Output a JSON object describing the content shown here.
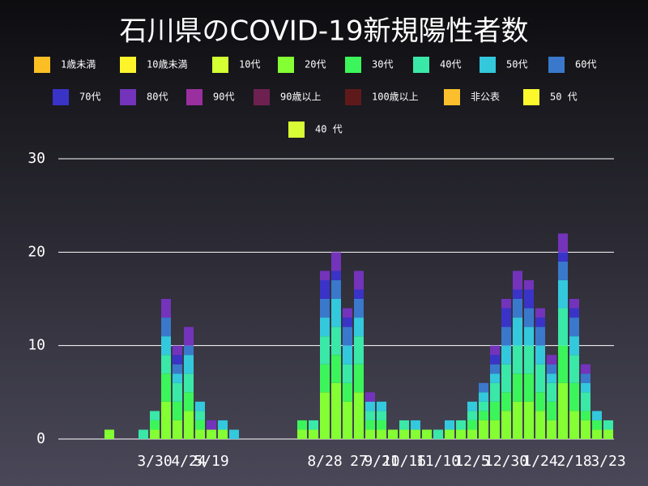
{
  "chart_data": {
    "type": "stacked_bar",
    "title": "石川県のCOVID-19新規陽性者数",
    "categories": [
      null,
      null,
      null,
      null,
      null,
      null,
      null,
      null,
      "3/30",
      null,
      null,
      "4/24",
      null,
      "5/19",
      null,
      null,
      null,
      null,
      null,
      null,
      null,
      null,
      null,
      "8/28",
      null,
      null,
      "27",
      null,
      "9/21",
      null,
      "10/16",
      null,
      null,
      "11/10",
      null,
      null,
      "12/5",
      null,
      null,
      "12/30",
      null,
      null,
      "1/24",
      null,
      null,
      "2/18",
      null,
      null,
      "3/23"
    ],
    "series": [
      {
        "name": "1歳未満",
        "color": "#fbbf24",
        "values": [
          0,
          0,
          0,
          0,
          0,
          0,
          0,
          0,
          0,
          0,
          0,
          0,
          0,
          0,
          0,
          0,
          0,
          0,
          0,
          0,
          0,
          0,
          0,
          0,
          0,
          0,
          0,
          0,
          0,
          0,
          0,
          0,
          0,
          0,
          0,
          0,
          0,
          0,
          0,
          0,
          0,
          0,
          0,
          0,
          0,
          0,
          0,
          0,
          0
        ]
      },
      {
        "name": "10歳未満",
        "color": "#fdf52a",
        "values": [
          0,
          0,
          0,
          0,
          0,
          0,
          0,
          0,
          0,
          0,
          0,
          0,
          0,
          0,
          0,
          0,
          0,
          0,
          0,
          0,
          0,
          0,
          0,
          0,
          0,
          0,
          0,
          0,
          0,
          0,
          0,
          0,
          0,
          0,
          0,
          0,
          0,
          0,
          0,
          0,
          0,
          0,
          0,
          0,
          0,
          0,
          0,
          0,
          0
        ]
      },
      {
        "name": "10代",
        "color": "#d4ff33",
        "values": [
          0,
          0,
          0,
          0,
          0,
          0,
          0,
          0,
          0,
          0,
          0,
          0,
          0,
          0,
          0,
          0,
          0,
          0,
          0,
          0,
          0,
          0,
          0,
          0,
          0,
          0,
          0,
          0,
          0,
          0,
          0,
          0,
          0,
          0,
          0,
          0,
          0,
          0,
          0,
          0,
          0,
          0,
          0,
          0,
          0,
          0,
          0,
          0,
          0
        ]
      },
      {
        "name": "20代",
        "color": "#84ff33",
        "values": [
          0,
          0,
          0,
          0,
          1,
          0,
          0,
          0,
          1,
          4,
          2,
          3,
          1,
          1,
          1,
          0,
          0,
          0,
          0,
          0,
          0,
          1,
          1,
          5,
          6,
          4,
          5,
          1,
          1,
          1,
          1,
          1,
          1,
          0,
          1,
          1,
          1,
          2,
          2,
          3,
          4,
          4,
          3,
          2,
          6,
          3,
          2,
          1,
          1
        ]
      },
      {
        "name": "30代",
        "color": "#3cf55a",
        "values": [
          0,
          0,
          0,
          0,
          0,
          0,
          0,
          0,
          1,
          3,
          2,
          2,
          1,
          0,
          0,
          0,
          0,
          0,
          0,
          0,
          0,
          1,
          0,
          3,
          3,
          2,
          3,
          1,
          1,
          0,
          0,
          0,
          0,
          0,
          0,
          0,
          1,
          1,
          2,
          2,
          3,
          3,
          2,
          2,
          4,
          3,
          1,
          1,
          0
        ]
      },
      {
        "name": "40代",
        "color": "#3ae8a8",
        "values": [
          0,
          0,
          0,
          0,
          0,
          0,
          0,
          1,
          1,
          2,
          2,
          2,
          1,
          0,
          0,
          0,
          0,
          0,
          0,
          0,
          0,
          0,
          1,
          3,
          3,
          2,
          3,
          1,
          1,
          0,
          1,
          0,
          0,
          1,
          0,
          1,
          1,
          1,
          2,
          3,
          3,
          3,
          3,
          2,
          4,
          3,
          2,
          0,
          1
        ]
      },
      {
        "name": "50代",
        "color": "#33c8dc",
        "values": [
          0,
          0,
          0,
          0,
          0,
          0,
          0,
          0,
          0,
          2,
          1,
          2,
          1,
          0,
          1,
          1,
          0,
          0,
          0,
          0,
          0,
          0,
          0,
          2,
          3,
          2,
          2,
          1,
          1,
          0,
          0,
          1,
          0,
          0,
          1,
          0,
          1,
          1,
          1,
          2,
          3,
          2,
          2,
          1,
          3,
          2,
          1,
          1,
          0
        ]
      },
      {
        "name": "60代",
        "color": "#3a78cc",
        "values": [
          0,
          0,
          0,
          0,
          0,
          0,
          0,
          0,
          0,
          2,
          1,
          1,
          0,
          0,
          0,
          0,
          0,
          0,
          0,
          0,
          0,
          0,
          0,
          2,
          2,
          2,
          2,
          0,
          0,
          0,
          0,
          0,
          0,
          0,
          0,
          0,
          0,
          1,
          1,
          2,
          2,
          2,
          2,
          1,
          2,
          2,
          1,
          0,
          0
        ]
      },
      {
        "name": "70代",
        "color": "#3a33c8",
        "values": [
          0,
          0,
          0,
          0,
          0,
          0,
          0,
          0,
          0,
          0,
          1,
          0,
          0,
          0,
          0,
          0,
          0,
          0,
          0,
          0,
          0,
          0,
          0,
          2,
          1,
          1,
          1,
          0,
          0,
          0,
          0,
          0,
          0,
          0,
          0,
          0,
          0,
          0,
          1,
          2,
          1,
          2,
          1,
          0,
          1,
          1,
          0,
          0,
          0
        ]
      },
      {
        "name": "80代",
        "color": "#7433bb",
        "values": [
          0,
          0,
          0,
          0,
          0,
          0,
          0,
          0,
          0,
          2,
          1,
          2,
          0,
          1,
          0,
          0,
          0,
          0,
          0,
          0,
          0,
          0,
          0,
          1,
          2,
          1,
          2,
          1,
          0,
          0,
          0,
          0,
          0,
          0,
          0,
          0,
          0,
          0,
          1,
          1,
          2,
          1,
          1,
          1,
          2,
          1,
          1,
          0,
          0
        ]
      },
      {
        "name": "90代",
        "color": "#9a2fa0",
        "values": [
          0,
          0,
          0,
          0,
          0,
          0,
          0,
          0,
          0,
          0,
          0,
          0,
          0,
          0,
          0,
          0,
          0,
          0,
          0,
          0,
          0,
          0,
          0,
          0,
          0,
          0,
          0,
          0,
          0,
          0,
          0,
          0,
          0,
          0,
          0,
          0,
          0,
          0,
          0,
          0,
          0,
          0,
          0,
          0,
          0,
          0,
          0,
          0,
          0
        ]
      },
      {
        "name": "90歳以上",
        "color": "#6e2150",
        "values": [
          0,
          0,
          0,
          0,
          0,
          0,
          0,
          0,
          0,
          0,
          0,
          0,
          0,
          0,
          0,
          0,
          0,
          0,
          0,
          0,
          0,
          0,
          0,
          0,
          0,
          0,
          0,
          0,
          0,
          0,
          0,
          0,
          0,
          0,
          0,
          0,
          0,
          0,
          0,
          0,
          0,
          0,
          0,
          0,
          0,
          0,
          0,
          0,
          0
        ]
      },
      {
        "name": "100歳以上",
        "color": "#5e1a1a",
        "values": [
          0,
          0,
          0,
          0,
          0,
          0,
          0,
          0,
          0,
          0,
          0,
          0,
          0,
          0,
          0,
          0,
          0,
          0,
          0,
          0,
          0,
          0,
          0,
          0,
          0,
          0,
          0,
          0,
          0,
          0,
          0,
          0,
          0,
          0,
          0,
          0,
          0,
          0,
          0,
          0,
          0,
          0,
          0,
          0,
          0,
          0,
          0,
          0,
          0
        ]
      },
      {
        "name": "非公表",
        "color": "#fbbf2e",
        "values": [
          0,
          0,
          0,
          0,
          0,
          0,
          0,
          0,
          0,
          0,
          0,
          0,
          0,
          0,
          0,
          0,
          0,
          0,
          0,
          0,
          0,
          0,
          0,
          0,
          0,
          0,
          0,
          0,
          0,
          0,
          0,
          0,
          0,
          0,
          0,
          0,
          0,
          0,
          0,
          0,
          0,
          0,
          0,
          0,
          0,
          0,
          0,
          0,
          0
        ]
      },
      {
        "name": "50 代",
        "color": "#fcf82c",
        "values": [
          0,
          0,
          0,
          0,
          0,
          0,
          0,
          0,
          0,
          0,
          0,
          0,
          0,
          0,
          0,
          0,
          0,
          0,
          0,
          0,
          0,
          0,
          0,
          0,
          0,
          0,
          0,
          0,
          0,
          0,
          0,
          0,
          0,
          0,
          0,
          0,
          0,
          0,
          0,
          0,
          0,
          0,
          0,
          0,
          0,
          0,
          0,
          0,
          0
        ]
      },
      {
        "name": "40 代",
        "color": "#d8fd35",
        "values": [
          0,
          0,
          0,
          0,
          0,
          0,
          0,
          0,
          0,
          0,
          0,
          0,
          0,
          0,
          0,
          0,
          0,
          0,
          0,
          0,
          0,
          0,
          0,
          0,
          0,
          0,
          0,
          0,
          0,
          0,
          0,
          0,
          0,
          0,
          0,
          0,
          0,
          0,
          0,
          0,
          0,
          0,
          0,
          0,
          0,
          0,
          0,
          0,
          0
        ]
      }
    ],
    "ylim": [
      0,
      30
    ],
    "yticks": [
      0,
      10,
      20,
      30
    ],
    "grid": true
  }
}
